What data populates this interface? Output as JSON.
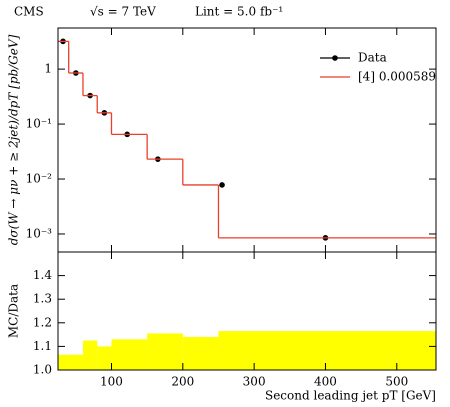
{
  "header": {
    "experiment": "CMS",
    "energy": "√s = 7 TeV",
    "luminosity": "Lint = 5.0 fb⁻¹"
  },
  "chart_data": [
    {
      "type": "histogram",
      "ylabel": "dσ(W → μν + ≥ 2jet)/dpT [pb/GeV]",
      "xlim": [
        25,
        555
      ],
      "ylim": [
        0.00047,
        5.6
      ],
      "ylog": true,
      "xticks": [
        100,
        200,
        300,
        400,
        500
      ],
      "yticks": [
        {
          "value": 0.001,
          "label": "10⁻³"
        },
        {
          "value": 0.01,
          "label": "10⁻²"
        },
        {
          "value": 0.1,
          "label": "10⁻¹"
        },
        1
      ],
      "bins": [
        25,
        40,
        60,
        80,
        100,
        150,
        200,
        250,
        555
      ],
      "legend": "upper right",
      "series": [
        {
          "name": "Data",
          "color": "#000000",
          "x": [
            32,
            50,
            70,
            90,
            122,
            165,
            255,
            400
          ],
          "values": [
            3.2,
            0.85,
            0.33,
            0.16,
            0.065,
            0.023,
            0.0078,
            0.00085
          ]
        },
        {
          "name": "[4] 0.000589",
          "color": "#e8402a",
          "values": [
            3.2,
            0.85,
            0.33,
            0.16,
            0.065,
            0.023,
            0.0078,
            0.00085
          ]
        }
      ]
    },
    {
      "type": "histogram",
      "ylabel": "MC/Data",
      "xlabel": "Second leading jet pT [GeV]",
      "xlim": [
        25,
        555
      ],
      "ylim": [
        1.0,
        1.5
      ],
      "xticks": [
        100,
        200,
        300,
        400,
        500
      ],
      "yticks": [
        {
          "value": 1.0,
          "label": "1.0"
        },
        1.1,
        1.2,
        1.3,
        1.4
      ],
      "bins": [
        25,
        40,
        60,
        80,
        100,
        150,
        200,
        250,
        555
      ],
      "color": "#ffff00",
      "values": [
        1.065,
        1.065,
        1.125,
        1.1,
        1.13,
        1.155,
        1.14,
        1.165
      ]
    }
  ]
}
